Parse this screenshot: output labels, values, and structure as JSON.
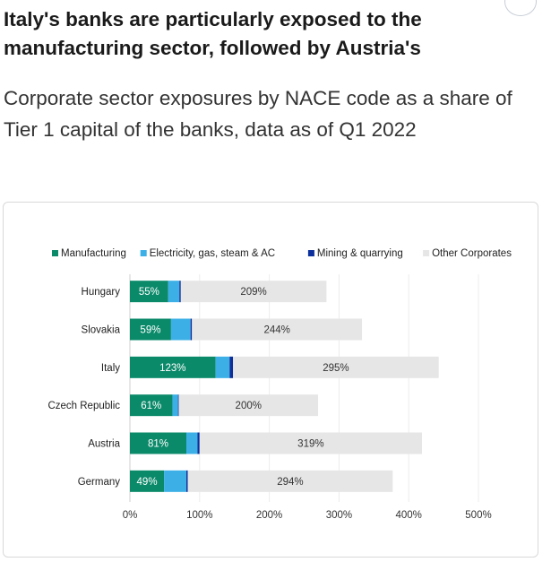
{
  "header": {
    "title": "Italy's banks are particularly exposed to the manufacturing sector, followed by Austria's",
    "subtitle": "Corporate sector exposures by NACE code as a share of Tier 1 capital of the banks, data as of Q1 2022"
  },
  "chart_data": {
    "type": "bar",
    "orientation": "horizontal",
    "stacked": true,
    "categories": [
      "Hungary",
      "Slovakia",
      "Italy",
      "Czech Republic",
      "Austria",
      "Germany"
    ],
    "series": [
      {
        "name": "Manufacturing",
        "color": "#0b8a6a",
        "values": [
          55,
          59,
          123,
          61,
          81,
          49
        ],
        "labels": [
          "55%",
          "59%",
          "123%",
          "61%",
          "81%",
          "49%"
        ]
      },
      {
        "name": "Electricity, gas, steam & AC",
        "color": "#3cb0e6",
        "values": [
          16,
          28,
          20,
          8,
          16,
          32
        ]
      },
      {
        "name": "Mining & quarrying",
        "color": "#0c2f9c",
        "values": [
          2,
          2,
          5,
          1,
          3,
          2
        ]
      },
      {
        "name": "Other Corporates",
        "color": "#e6e6e6",
        "values": [
          209,
          244,
          295,
          200,
          319,
          294
        ],
        "labels": [
          "209%",
          "244%",
          "295%",
          "200%",
          "319%",
          "294%"
        ]
      }
    ],
    "xlim": [
      0,
      500
    ],
    "xticks": [
      "0%",
      "100%",
      "200%",
      "300%",
      "400%",
      "500%"
    ],
    "grid": true,
    "legend_position": "top"
  }
}
